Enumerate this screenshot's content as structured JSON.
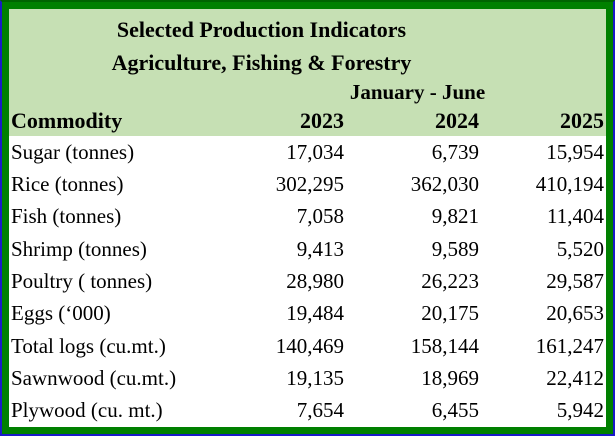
{
  "title": {
    "line1": "Selected Production Indicators",
    "line2": "Agriculture, Fishing & Forestry",
    "period": "January - June"
  },
  "header": {
    "commodity": "Commodity",
    "y2023": "2023",
    "y2024": "2024",
    "y2025": "2025"
  },
  "rows": [
    {
      "label": "Sugar (tonnes)",
      "y2023": "17,034",
      "y2024": "6,739",
      "y2025": "15,954"
    },
    {
      "label": "Rice (tonnes)",
      "y2023": "302,295",
      "y2024": "362,030",
      "y2025": "410,194"
    },
    {
      "label": "Fish (tonnes)",
      "y2023": "7,058",
      "y2024": "9,821",
      "y2025": "11,404"
    },
    {
      "label": "Shrimp (tonnes)",
      "y2023": "9,413",
      "y2024": "9,589",
      "y2025": "5,520"
    },
    {
      "label": "Poultry ( tonnes)",
      "y2023": "28,980",
      "y2024": "26,223",
      "y2025": "29,587"
    },
    {
      "label": "Eggs (‘000)",
      "y2023": "19,484",
      "y2024": "20,175",
      "y2025": "20,653"
    },
    {
      "label": "Total logs (cu.mt.)",
      "y2023": "140,469",
      "y2024": "158,144",
      "y2025": "161,247"
    },
    {
      "label": "Sawnwood (cu.mt.)",
      "y2023": "19,135",
      "y2024": "18,969",
      "y2025": "22,412"
    },
    {
      "label": "Plywood (cu. mt.)",
      "y2023": "7,654",
      "y2024": "6,455",
      "y2025": "5,942"
    }
  ],
  "colors": {
    "border_outer": "#1a1ac8",
    "border_outer_top": "#006400",
    "border_inner": "#008000",
    "header_bg": "#c6e0b4",
    "row_bg": "#ffffff",
    "text": "#000000"
  },
  "chart_data": {
    "type": "table",
    "title": "Selected Production Indicators",
    "subtitle": "Agriculture, Fishing & Forestry",
    "period": "January - June",
    "columns": [
      "Commodity",
      "2023",
      "2024",
      "2025"
    ],
    "rows": [
      [
        "Sugar (tonnes)",
        17034,
        6739,
        15954
      ],
      [
        "Rice (tonnes)",
        302295,
        362030,
        410194
      ],
      [
        "Fish (tonnes)",
        7058,
        9821,
        11404
      ],
      [
        "Shrimp (tonnes)",
        9413,
        9589,
        5520
      ],
      [
        "Poultry ( tonnes)",
        28980,
        26223,
        29587
      ],
      [
        "Eggs (‘000)",
        19484,
        20175,
        20653
      ],
      [
        "Total logs (cu.mt.)",
        140469,
        158144,
        161247
      ],
      [
        "Sawnwood (cu.mt.)",
        19135,
        18969,
        22412
      ],
      [
        "Plywood (cu. mt.)",
        7654,
        6455,
        5942
      ]
    ]
  }
}
